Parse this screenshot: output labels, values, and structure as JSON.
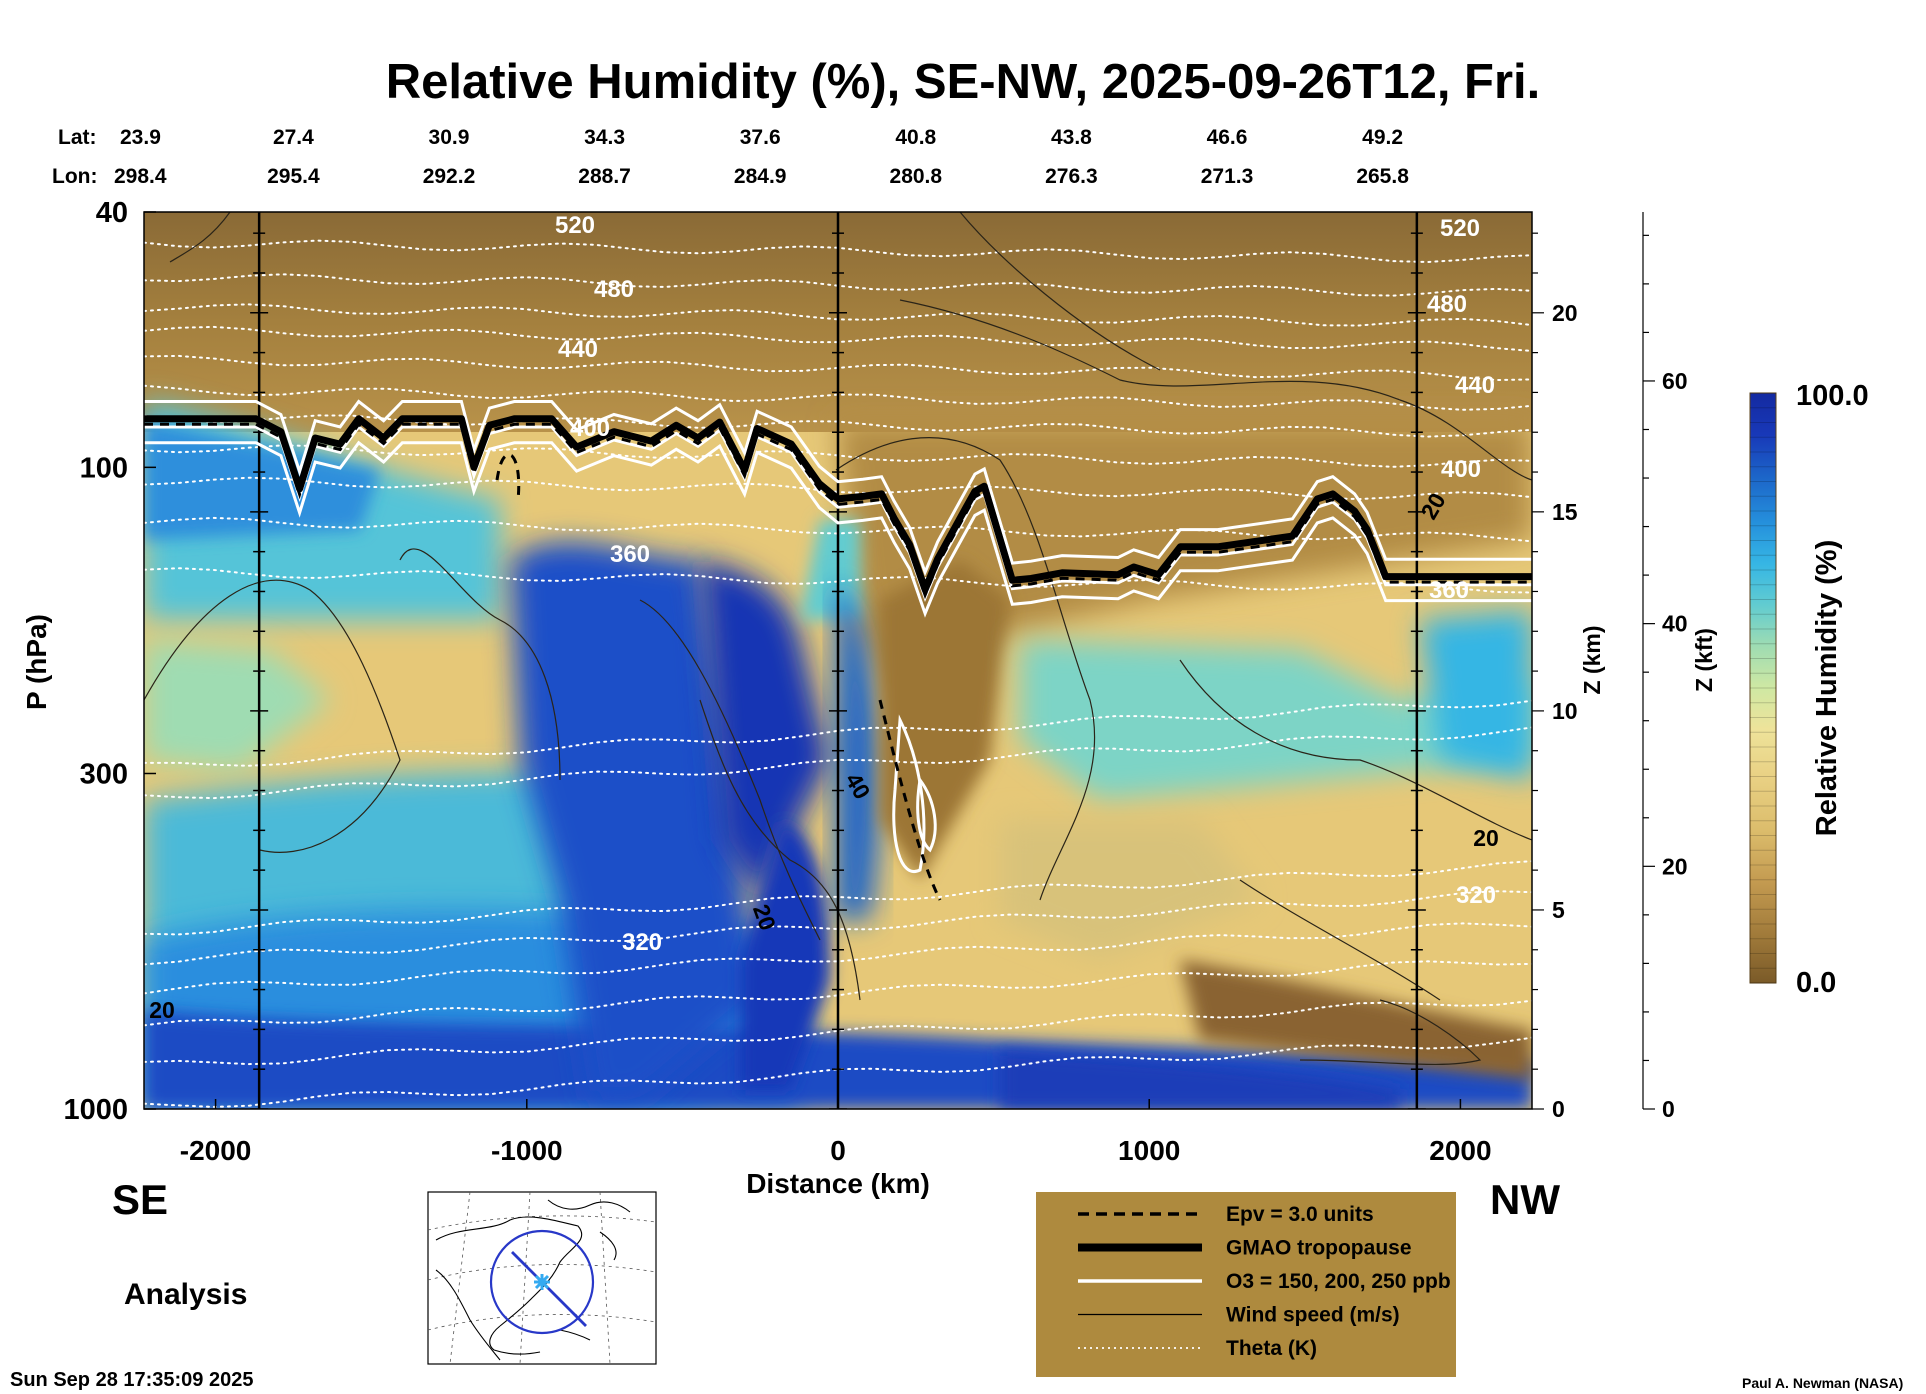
{
  "chart_data": {
    "type": "heatmap",
    "title": "Relative Humidity (%), SE-NW, 2025-09-26T12, Fri.",
    "variable": "Relative Humidity (%)",
    "xlabel": "Distance (km)",
    "ylabel": "P (hPa)",
    "y2label": "Z (km)",
    "y3label": "Z (kft)",
    "xlim": [
      -2230,
      2230
    ],
    "ylim_hpa": [
      1000,
      40
    ],
    "x_ticks": [
      -2000,
      -1000,
      0,
      1000,
      2000
    ],
    "p_ticks": [
      40,
      100,
      300,
      1000
    ],
    "z_km_ticks": [
      0,
      5,
      10,
      15,
      20
    ],
    "z_kft_ticks": [
      0,
      20,
      40,
      60
    ],
    "lat_label": "Lat:",
    "lon_label": "Lon:",
    "lat_values": [
      "23.9",
      "27.4",
      "30.9",
      "34.3",
      "37.6",
      "40.8",
      "43.8",
      "46.6",
      "49.2"
    ],
    "lon_values": [
      "298.4",
      "295.4",
      "292.2",
      "288.7",
      "284.9",
      "280.8",
      "276.3",
      "271.3",
      "265.8"
    ],
    "left_direction": "SE",
    "right_direction": "NW",
    "colorbar": {
      "label": "Relative Humidity (%)",
      "min": 0.0,
      "max": 100.0,
      "min_label": "0.0",
      "max_label": "100.0",
      "colors": [
        "#7a5a28",
        "#a07a3a",
        "#c39a50",
        "#dcbd6c",
        "#e9d184",
        "#eee39a",
        "#cfe8a3",
        "#9fdcb2",
        "#62ccd0",
        "#36b6e4",
        "#2590dc",
        "#1c64c8",
        "#1838b8",
        "#142aa0"
      ]
    },
    "vertical_sample_lines_km": [
      -1860,
      0,
      1860
    ],
    "theta_labels": [
      "520",
      "480",
      "440",
      "400",
      "360",
      "320",
      "520",
      "480",
      "440",
      "400",
      "360",
      "320"
    ],
    "wind_labels": [
      "20",
      "40",
      "20",
      "20",
      "20"
    ],
    "tropopause_km": [
      [
        -2230,
        84
      ],
      [
        -1870,
        84
      ],
      [
        -1790,
        88
      ],
      [
        -1730,
        108
      ],
      [
        -1680,
        90
      ],
      [
        -1600,
        92
      ],
      [
        -1540,
        84
      ],
      [
        -1460,
        90
      ],
      [
        -1400,
        84
      ],
      [
        -1210,
        84
      ],
      [
        -1170,
        100
      ],
      [
        -1120,
        86
      ],
      [
        -1040,
        84
      ],
      [
        -920,
        84
      ],
      [
        -840,
        93
      ],
      [
        -720,
        88
      ],
      [
        -600,
        91
      ],
      [
        -520,
        86
      ],
      [
        -450,
        90
      ],
      [
        -380,
        85
      ],
      [
        -300,
        101
      ],
      [
        -260,
        87
      ],
      [
        -150,
        92
      ],
      [
        -60,
        106
      ],
      [
        0,
        112
      ],
      [
        80,
        111
      ],
      [
        140,
        110
      ],
      [
        180,
        120
      ],
      [
        230,
        132
      ],
      [
        280,
        155
      ],
      [
        320,
        139
      ],
      [
        380,
        123
      ],
      [
        440,
        109
      ],
      [
        470,
        107
      ],
      [
        520,
        129
      ],
      [
        560,
        150
      ],
      [
        620,
        149
      ],
      [
        720,
        146
      ],
      [
        900,
        147
      ],
      [
        950,
        143
      ],
      [
        1030,
        147
      ],
      [
        1100,
        133
      ],
      [
        1220,
        133
      ],
      [
        1460,
        128
      ],
      [
        1540,
        112
      ],
      [
        1590,
        110
      ],
      [
        1660,
        117
      ],
      [
        1700,
        125
      ],
      [
        1760,
        148
      ],
      [
        1900,
        148
      ],
      [
        2230,
        148
      ]
    ],
    "legend": [
      {
        "label": "Epv = 3.0 units",
        "style": "dashed",
        "color": "#000000"
      },
      {
        "label": "GMAO tropopause",
        "style": "thick",
        "color": "#000000"
      },
      {
        "label": "O3 = 150, 200, 250 ppb",
        "style": "solid",
        "color": "#ffffff"
      },
      {
        "label": "Wind speed (m/s)",
        "style": "thin",
        "color": "#000000"
      },
      {
        "label": "Theta (K)",
        "style": "dotted",
        "color": "#ffffff"
      }
    ],
    "legend_color": "#ae8a3e"
  },
  "panel": {
    "mode_label": "Analysis",
    "timestamp": "Sun Sep 28 17:35:09 2025",
    "credit": "Paul A. Newman (NASA)"
  }
}
